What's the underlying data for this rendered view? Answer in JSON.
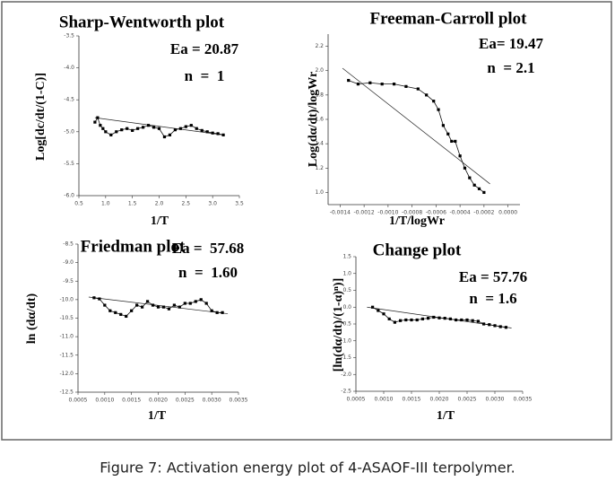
{
  "chart_data": [
    {
      "type": "scatter",
      "title": "Sharp-Wentworth plot",
      "annotations": [
        "Ea = 20.87",
        "n  =  1"
      ],
      "xlabel": "1/T",
      "ylabel": "Log[dc/dt/(1-C)]",
      "x": [
        0.8,
        0.85,
        0.9,
        0.95,
        1.0,
        1.1,
        1.2,
        1.3,
        1.4,
        1.5,
        1.6,
        1.7,
        1.8,
        1.9,
        2.0,
        2.1,
        2.2,
        2.3,
        2.4,
        2.5,
        2.6,
        2.7,
        2.8,
        2.9,
        3.0,
        3.1,
        3.2
      ],
      "values": [
        -4.85,
        -4.78,
        -4.9,
        -4.95,
        -5.0,
        -5.05,
        -5.0,
        -4.97,
        -4.95,
        -4.98,
        -4.95,
        -4.93,
        -4.9,
        -4.93,
        -4.95,
        -5.08,
        -5.05,
        -4.97,
        -4.95,
        -4.92,
        -4.9,
        -4.95,
        -4.98,
        -5.0,
        -5.02,
        -5.03,
        -5.05
      ],
      "fit": {
        "x": [
          0.8,
          3.2
        ],
        "values": [
          -4.78,
          -5.05
        ]
      },
      "xlim": [
        0.5,
        3.5
      ],
      "ylim": [
        -6.0,
        -3.5
      ],
      "xticks": [
        0.5,
        {
          "value": 1,
          "label": "1.0"
        },
        1.5,
        {
          "value": 2,
          "label": "2.0"
        },
        2.5,
        {
          "value": 3,
          "label": "3.0"
        },
        3.5
      ],
      "yticks": [
        {
          "value": -6,
          "label": "-6.0"
        },
        -5.5,
        {
          "value": -5,
          "label": "-5.0"
        },
        -4.5,
        {
          "value": -4,
          "label": "-4.0"
        },
        -3.5
      ]
    },
    {
      "type": "scatter",
      "title": "Freeman-Carroll plot",
      "annotations": [
        "Ea= 19.47",
        "n  = 2.1"
      ],
      "xlabel": "1/T/logWr",
      "ylabel": "Log(dα/dt)/logWr",
      "x": [
        -0.00133,
        -0.00125,
        -0.00115,
        -0.00105,
        -0.00095,
        -0.00085,
        -0.00075,
        -0.00068,
        -0.00062,
        -0.00058,
        -0.00054,
        -0.0005,
        -0.00047,
        -0.00044,
        -0.0004,
        -0.00036,
        -0.00032,
        -0.00028,
        -0.00024,
        -0.0002
      ],
      "values": [
        1.92,
        1.89,
        1.9,
        1.89,
        1.89,
        1.87,
        1.85,
        1.8,
        1.75,
        1.68,
        1.55,
        1.48,
        1.42,
        1.42,
        1.3,
        1.2,
        1.12,
        1.06,
        1.03,
        1.0
      ],
      "fit": {
        "x": [
          -0.00138,
          -0.00015
        ],
        "values": [
          2.02,
          1.07
        ]
      },
      "xlim": [
        -0.0015,
        0.0001
      ],
      "ylim": [
        0.9,
        2.3
      ],
      "xticks": [
        -0.0014,
        -0.0012,
        {
          "value": -0.001,
          "label": "-0.0010"
        },
        -0.0008,
        -0.0006,
        -0.0004,
        -0.0002,
        {
          "value": 0,
          "label": "0.0000"
        }
      ],
      "yticks": [
        {
          "value": 1,
          "label": "1.0"
        },
        1.2,
        1.4,
        1.6,
        1.8,
        {
          "value": 2,
          "label": "2.0"
        },
        2.2
      ]
    },
    {
      "type": "scatter",
      "title": "Friedman plot",
      "annotations": [
        "Ea =  57.68",
        "n  =  1.60"
      ],
      "xlabel": "1/T",
      "ylabel": "ln (dα/dt)",
      "x": [
        0.0008,
        0.0009,
        0.001,
        0.0011,
        0.0012,
        0.0013,
        0.0014,
        0.0015,
        0.0016,
        0.0017,
        0.0018,
        0.0019,
        0.002,
        0.0021,
        0.0022,
        0.0023,
        0.0024,
        0.0025,
        0.0026,
        0.0027,
        0.0028,
        0.0029,
        0.003,
        0.0031,
        0.0032
      ],
      "values": [
        -9.95,
        -9.98,
        -10.15,
        -10.3,
        -10.35,
        -10.4,
        -10.45,
        -10.3,
        -10.15,
        -10.2,
        -10.05,
        -10.15,
        -10.2,
        -10.2,
        -10.25,
        -10.15,
        -10.2,
        -10.1,
        -10.1,
        -10.05,
        -10.0,
        -10.1,
        -10.3,
        -10.35,
        -10.35
      ],
      "fit": {
        "x": [
          0.0007,
          0.0033
        ],
        "values": [
          -9.93,
          -10.38
        ]
      },
      "xlim": [
        0.0005,
        0.0035
      ],
      "ylim": [
        -12.5,
        -8.5
      ],
      "xticks": [
        0.0005,
        {
          "value": 0.001,
          "label": "0.0010"
        },
        0.0015,
        {
          "value": 0.002,
          "label": "0.0020"
        },
        0.0025,
        {
          "value": 0.003,
          "label": "0.0030"
        },
        0.0035
      ],
      "yticks": [
        -12.5,
        {
          "value": -12,
          "label": "-12.0"
        },
        -11.5,
        {
          "value": -11,
          "label": "-11.0"
        },
        -10.5,
        {
          "value": -10,
          "label": "-10.0"
        },
        -9.5,
        {
          "value": -9,
          "label": "-9.0"
        },
        -8.5
      ]
    },
    {
      "type": "scatter",
      "title": "Change plot",
      "annotations": [
        "Ea = 57.76",
        "n  = 1.6"
      ],
      "xlabel": "1/T",
      "ylabel": "[ln(dα/dt)/(1-α)ⁿ)]",
      "x": [
        0.0008,
        0.0009,
        0.001,
        0.0011,
        0.0012,
        0.0013,
        0.0014,
        0.0015,
        0.0016,
        0.0017,
        0.0018,
        0.0019,
        0.002,
        0.0021,
        0.0022,
        0.0023,
        0.0024,
        0.0025,
        0.0026,
        0.0027,
        0.0028,
        0.0029,
        0.003,
        0.0031,
        0.0032
      ],
      "values": [
        0.0,
        -0.1,
        -0.2,
        -0.35,
        -0.45,
        -0.4,
        -0.38,
        -0.38,
        -0.38,
        -0.35,
        -0.33,
        -0.3,
        -0.32,
        -0.33,
        -0.35,
        -0.38,
        -0.38,
        -0.38,
        -0.4,
        -0.42,
        -0.5,
        -0.52,
        -0.55,
        -0.58,
        -0.6
      ],
      "fit": {
        "x": [
          0.0007,
          0.0033
        ],
        "values": [
          0.0,
          -0.62
        ]
      },
      "xlim": [
        0.0005,
        0.0035
      ],
      "ylim": [
        -2.5,
        1.5
      ],
      "xticks": [
        0.0005,
        {
          "value": 0.001,
          "label": "0.0010"
        },
        0.0015,
        {
          "value": 0.002,
          "label": "0.0020"
        },
        0.0025,
        {
          "value": 0.003,
          "label": "0.0030"
        },
        0.0035
      ],
      "yticks": [
        -2.5,
        {
          "value": -2,
          "label": "-2.0"
        },
        -1.5,
        {
          "value": -1,
          "label": "-1.0"
        },
        -0.5,
        {
          "value": 0,
          "label": "0.0"
        },
        0.5,
        {
          "value": 1,
          "label": "1.0"
        },
        1.5
      ]
    }
  ],
  "caption": "Figure 7: Activation energy plot of 4-ASAOF-III terpolymer."
}
